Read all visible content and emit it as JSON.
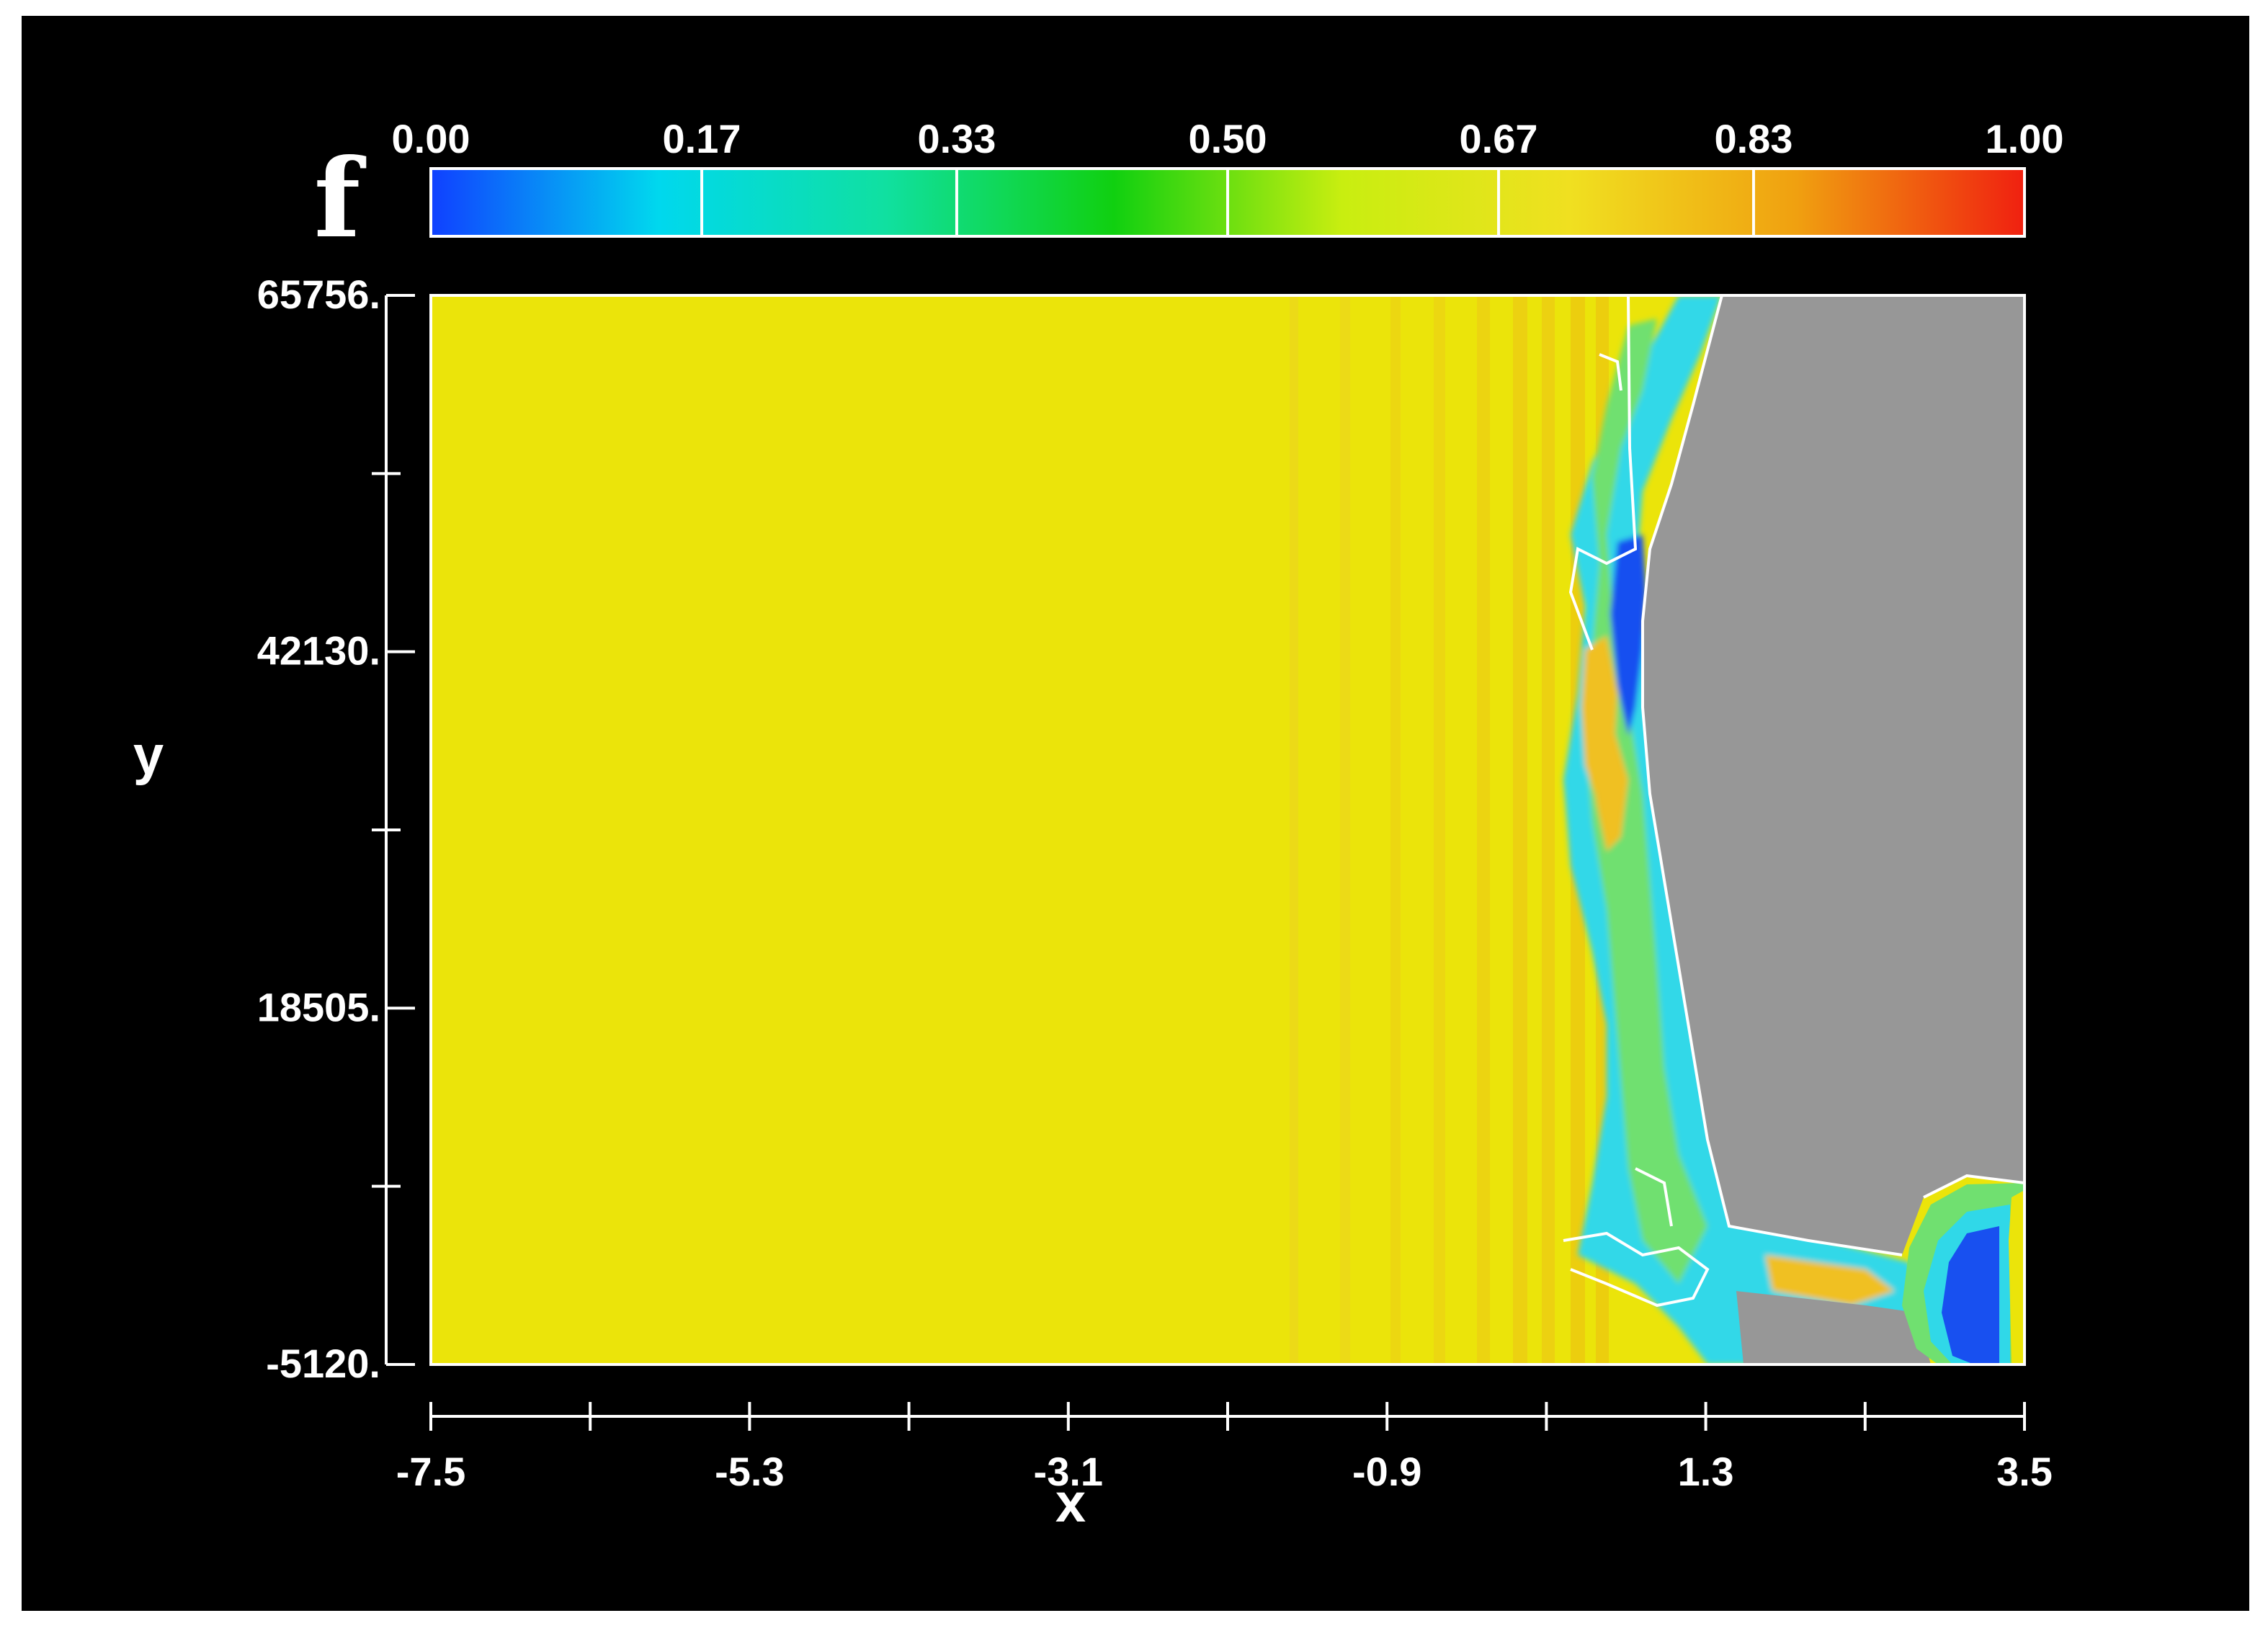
{
  "chart_data": {
    "type": "heatmap",
    "colorbar": {
      "title": "f",
      "ticks": [
        "0.00",
        "0.17",
        "0.33",
        "0.50",
        "0.67",
        "0.83",
        "1.00"
      ],
      "range": [
        0,
        1
      ],
      "colors": [
        "#1040ff",
        "#00d8ee",
        "#10e0a0",
        "#10d010",
        "#c8ee10",
        "#f0e020",
        "#f0a010",
        "#f02010"
      ]
    },
    "x_axis": {
      "label": "x",
      "range": [
        -7.5,
        3.5
      ],
      "tick_labels": [
        "-7.5",
        "-5.3",
        "-3.1",
        "-0.9",
        "1.3",
        "3.5"
      ],
      "tick_values": [
        -7.5,
        -5.3,
        -3.1,
        -0.9,
        1.3,
        3.5
      ],
      "minor_ticks": [
        -6.4,
        -4.2,
        -2.0,
        0.2,
        2.4
      ]
    },
    "y_axis": {
      "label": "y",
      "range": [
        -5120,
        65756
      ],
      "tick_labels": [
        "65756.",
        "42130.",
        "18505.",
        "-5120."
      ],
      "tick_values": [
        65756,
        42130,
        18505,
        -5120
      ],
      "minor_ticks": [
        53943,
        30318,
        6693
      ]
    },
    "field_colors": {
      "background": "#000000",
      "dominant": "#ebe40a",
      "solid_region": "#979797",
      "band_orange": "#f0c020",
      "band_cyan": "#30d8e8",
      "band_green": "#70e070",
      "band_blue": "#1850f0",
      "contour": "#ffffff",
      "axis": "#ffffff"
    },
    "grid": false
  }
}
